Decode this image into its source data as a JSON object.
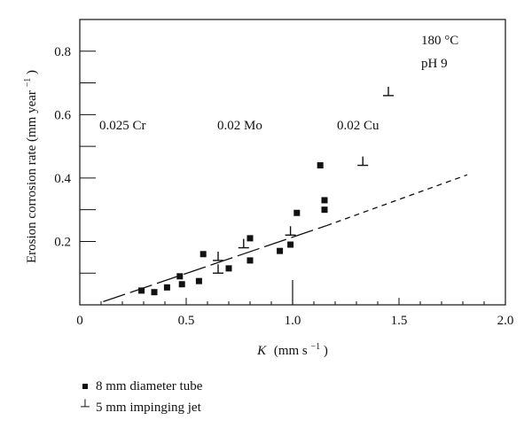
{
  "chart_data": {
    "type": "scatter",
    "xlabel_k": "K",
    "xlabel_units": "(mm s",
    "xlabel_exp": "−1",
    "xlabel_close": ")",
    "ylabel": "Erosion corrosion rate (mm year",
    "ylabel_exp": "−1",
    "ylabel_close": ")",
    "xlim": [
      0,
      2.0
    ],
    "ylim": [
      0,
      0.9
    ],
    "x_ticks": [
      "0",
      "0.5",
      "1.0",
      "1.5",
      "2.0"
    ],
    "y_ticks": [
      "0.2",
      "0.4",
      "0.6",
      "0.8"
    ],
    "annotations": {
      "temperature": "180 °C",
      "ph": "pH 9",
      "cr": "0.025 Cr",
      "mo": "0.02 Mo",
      "cu": "0.02 Cu"
    },
    "series": [
      {
        "name": "8 mm diameter tube",
        "marker": "square",
        "points": [
          [
            0.29,
            0.045
          ],
          [
            0.35,
            0.04
          ],
          [
            0.41,
            0.055
          ],
          [
            0.47,
            0.09
          ],
          [
            0.48,
            0.065
          ],
          [
            0.56,
            0.075
          ],
          [
            0.58,
            0.16
          ],
          [
            0.7,
            0.115
          ],
          [
            0.8,
            0.21
          ],
          [
            0.8,
            0.14
          ],
          [
            0.94,
            0.17
          ],
          [
            0.99,
            0.19
          ],
          [
            1.02,
            0.29
          ],
          [
            1.13,
            0.44
          ],
          [
            1.15,
            0.33
          ],
          [
            1.15,
            0.3
          ]
        ]
      },
      {
        "name": "5 mm impinging jet",
        "marker": "jet",
        "points": [
          [
            0.65,
            0.14
          ],
          [
            0.65,
            0.1
          ],
          [
            0.77,
            0.18
          ],
          [
            0.99,
            0.22
          ],
          [
            1.33,
            0.44
          ],
          [
            1.45,
            0.66
          ]
        ]
      }
    ],
    "trend_solid": [
      [
        0.11,
        0.01
      ],
      [
        1.16,
        0.25
      ]
    ],
    "trend_dashed": [
      [
        1.16,
        0.25
      ],
      [
        1.82,
        0.41
      ]
    ],
    "vertical_marker_x": 1.0
  }
}
